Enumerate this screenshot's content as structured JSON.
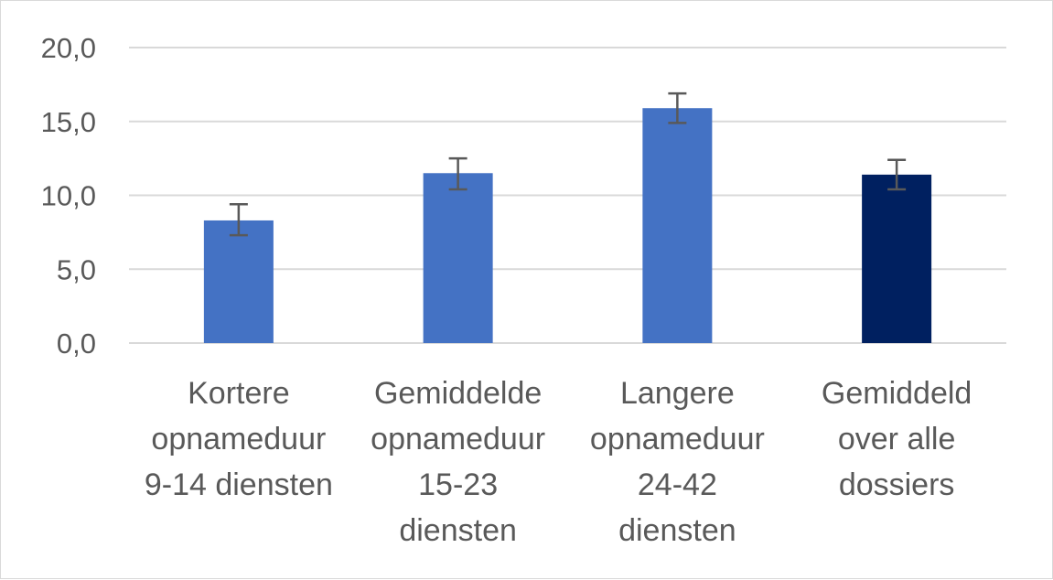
{
  "chart_data": {
    "type": "bar",
    "categories": [
      [
        "Kortere",
        "opnameduur",
        "9-14 diensten"
      ],
      [
        "Gemiddelde",
        "opnameduur",
        "15-23",
        "diensten"
      ],
      [
        "Langere",
        "opnameduur",
        "24-42",
        "diensten"
      ],
      [
        "Gemiddeld",
        "over alle",
        "dossiers"
      ]
    ],
    "values": [
      8.3,
      11.5,
      15.9,
      11.4
    ],
    "error_low": [
      7.3,
      10.4,
      14.9,
      10.4
    ],
    "error_high": [
      9.4,
      12.5,
      16.9,
      12.4
    ],
    "bar_colors": [
      "#4472c4",
      "#4472c4",
      "#4472c4",
      "#002060"
    ],
    "ylim": [
      0,
      20
    ],
    "yticks": [
      0,
      5,
      10,
      15,
      20
    ],
    "ytick_labels": [
      "0,0",
      "5,0",
      "10,0",
      "15,0",
      "20,0"
    ],
    "grid": true,
    "title": "",
    "xlabel": "",
    "ylabel": ""
  },
  "colors": {
    "grid": "#d9d9d9",
    "error_bar": "#595959",
    "axis_text": "#595959"
  }
}
